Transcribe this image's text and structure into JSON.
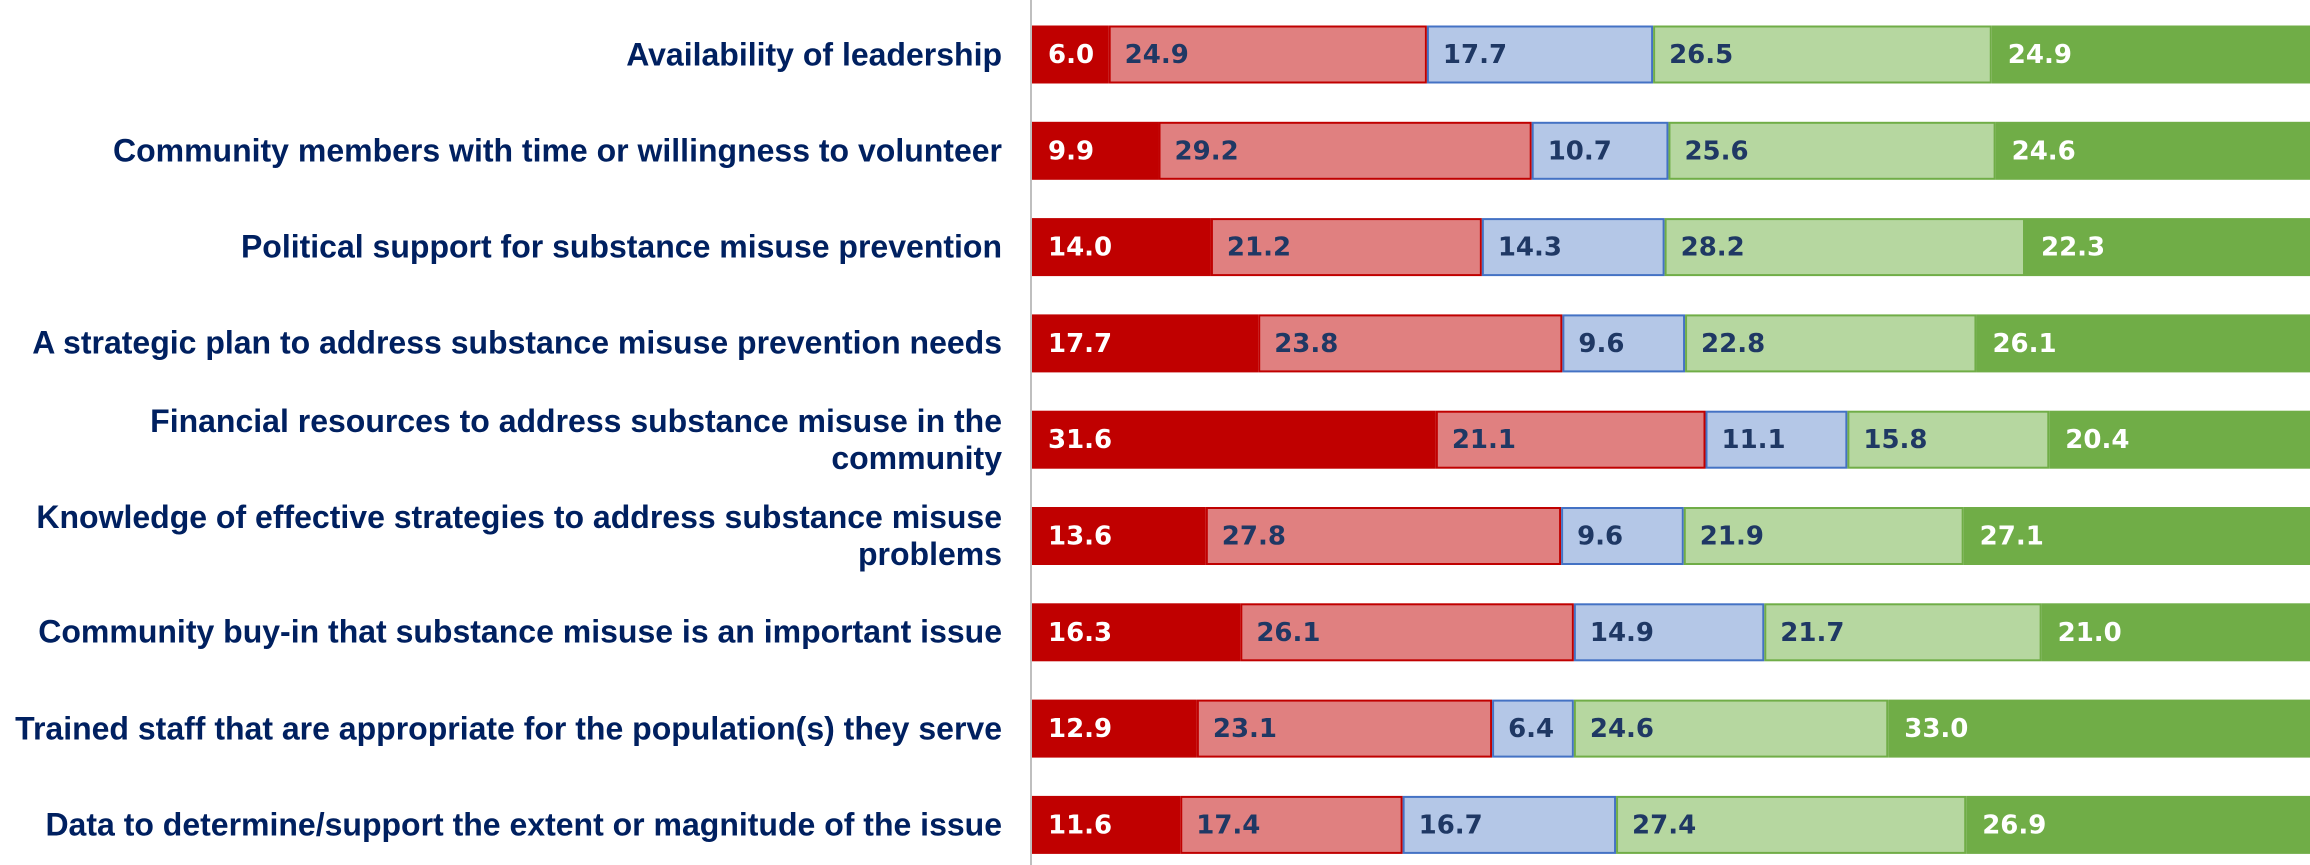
{
  "chart_data": {
    "type": "stacked_bar_horizontal",
    "categories": [
      "Availability of leadership",
      "Community members with time or willingness to volunteer",
      "Political support for substance misuse prevention",
      "A strategic plan to address substance misuse prevention needs",
      "Financial resources to address substance misuse in the community",
      "Knowledge of effective strategies to address substance misuse problems",
      "Community buy-in that substance misuse is an important issue",
      "Trained staff that are appropriate for the population(s) they serve",
      "Data to determine/support the extent or magnitude of the issue"
    ],
    "xlim": [
      0,
      100
    ],
    "series": [
      {
        "color": "#c00000",
        "border": "#c00000",
        "label_color": "#ffffff",
        "values": [
          6,
          9.9,
          14,
          17.7,
          31.6,
          13.6,
          16.3,
          12.9,
          11.6
        ],
        "value_labels": [
          "6.0",
          "9.9",
          "14.0",
          "17.7",
          "31.6",
          "13.6",
          "16.3",
          "12.9",
          "11.6"
        ]
      },
      {
        "color": "#e08080",
        "border": "#c00000",
        "label_color": "#1f3864",
        "values": [
          24.9,
          29.2,
          21.2,
          23.8,
          21.1,
          27.8,
          26.1,
          23.1,
          17.4
        ],
        "value_labels": [
          "24.9",
          "29.2",
          "21.2",
          "23.8",
          "21.1",
          "27.8",
          "26.1",
          "23.1",
          "17.4"
        ]
      },
      {
        "color": "#b4c7e7",
        "border": "#4472c4",
        "label_color": "#1f3864",
        "values": [
          17.7,
          10.7,
          14.3,
          9.6,
          11.1,
          9.6,
          14.9,
          6.4,
          16.7
        ],
        "value_labels": [
          "17.7",
          "10.7",
          "14.3",
          "9.6",
          "11.1",
          "9.6",
          "14.9",
          "6.4",
          "16.7"
        ]
      },
      {
        "color": "#b6d7a0",
        "border": "#70ad47",
        "label_color": "#1f3864",
        "values": [
          26.5,
          25.6,
          28.2,
          22.8,
          15.8,
          21.9,
          21.7,
          24.6,
          27.4
        ],
        "value_labels": [
          "26.5",
          "25.6",
          "28.2",
          "22.8",
          "15.8",
          "21.9",
          "21.7",
          "24.6",
          "27.4"
        ]
      },
      {
        "color": "#70ad47",
        "border": "#70ad47",
        "label_color": "#ffffff",
        "values": [
          24.9,
          24.6,
          22.3,
          26.1,
          20.4,
          27.1,
          21,
          33,
          26.9
        ],
        "value_labels": [
          "24.9",
          "24.6",
          "22.3",
          "26.1",
          "20.4",
          "27.1",
          "21.0",
          "33.0",
          "26.9"
        ]
      }
    ]
  }
}
